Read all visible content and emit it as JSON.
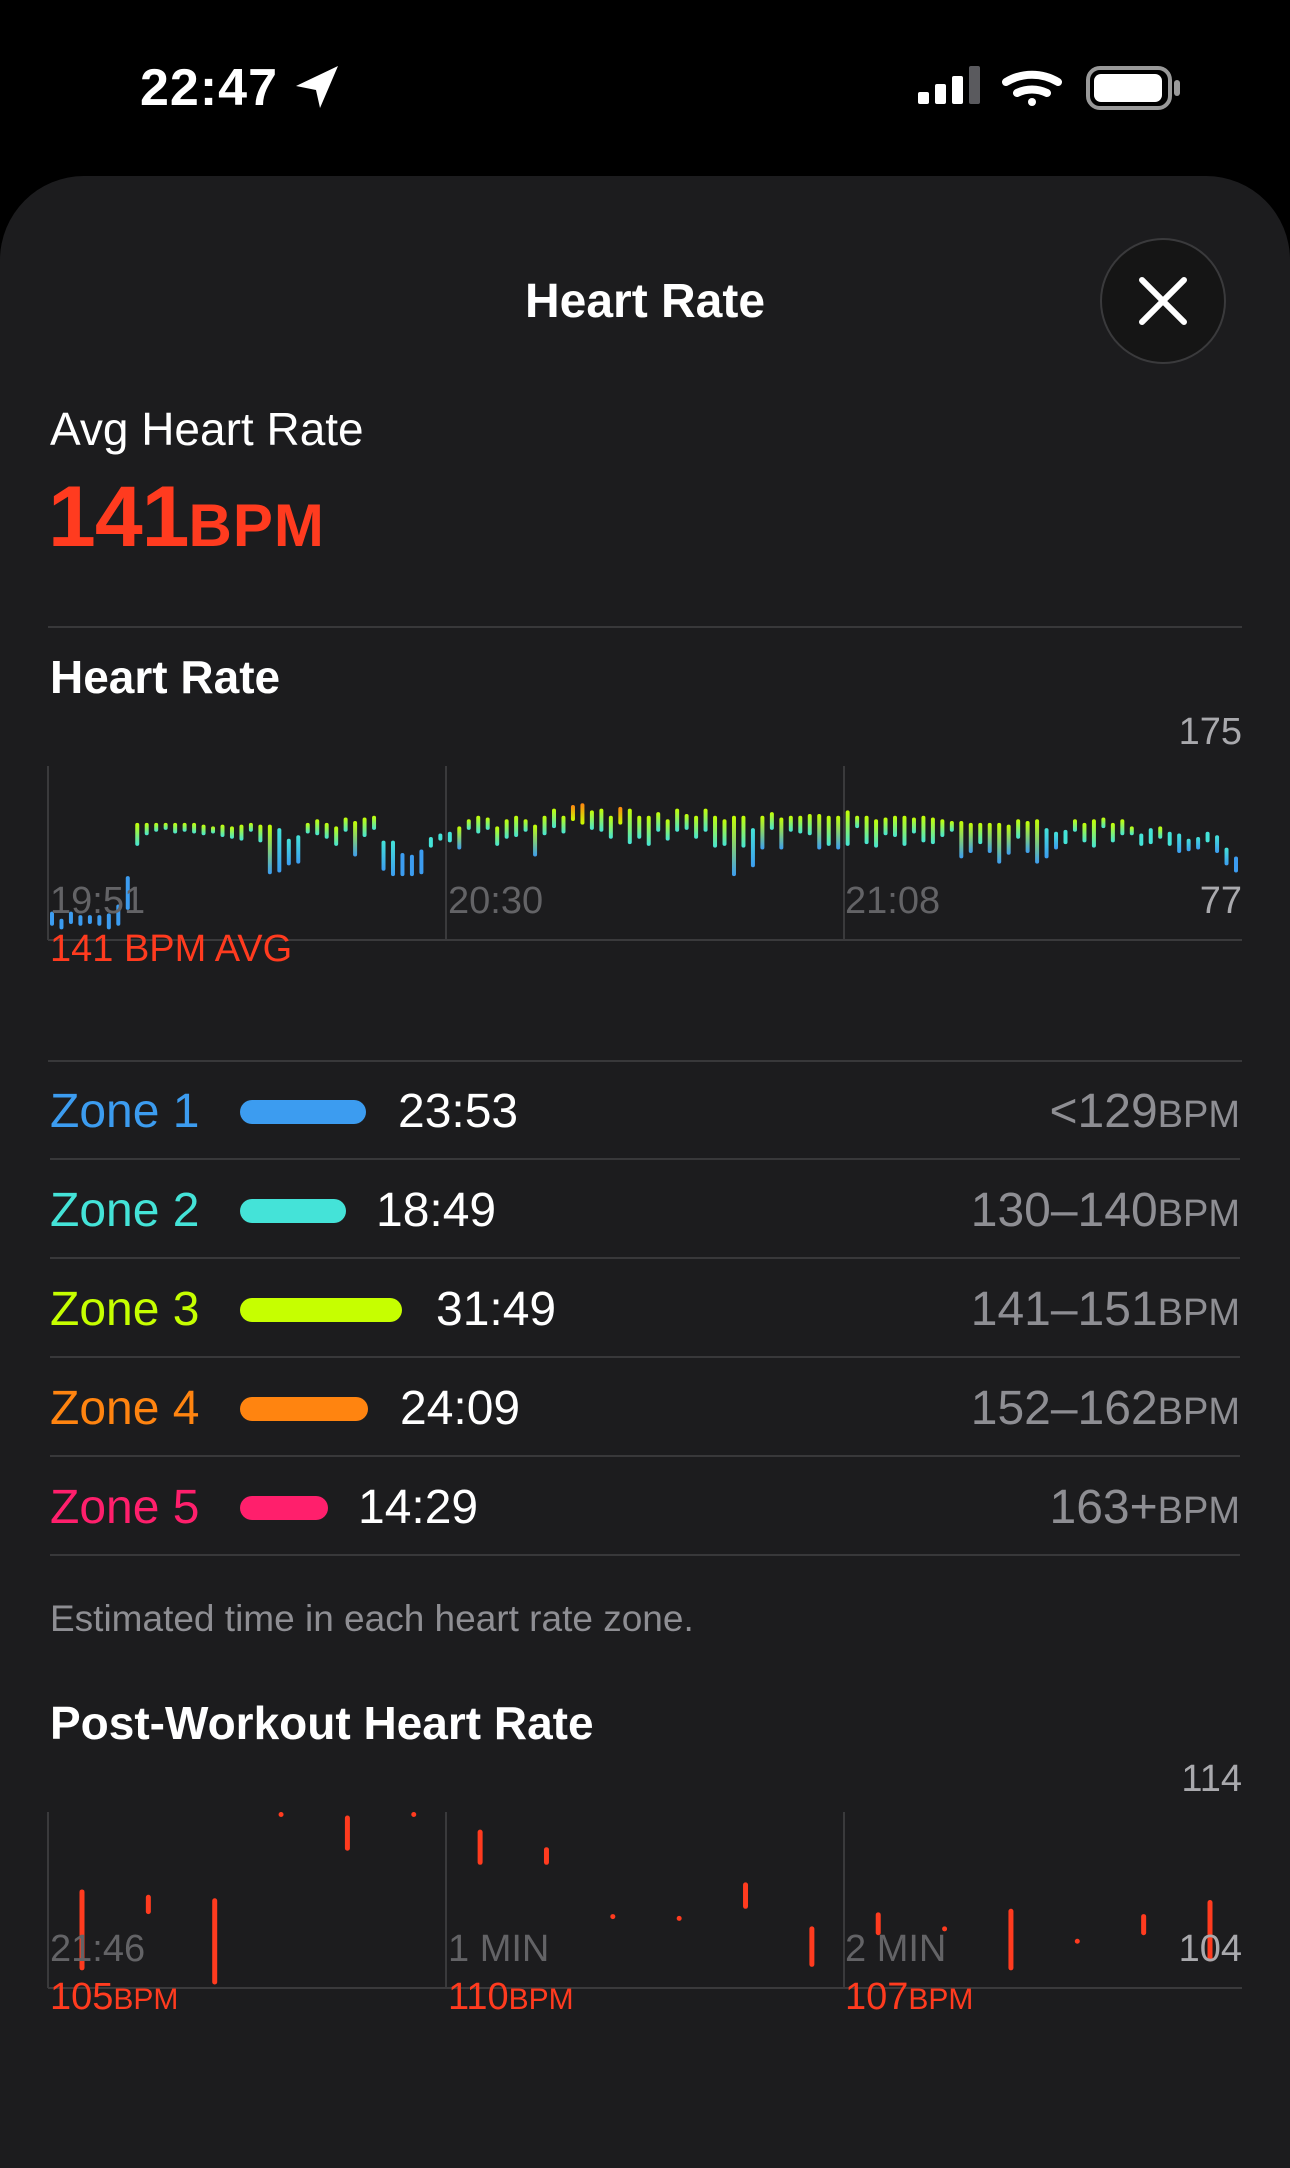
{
  "status_bar": {
    "time": "22:47",
    "icons": [
      "location-arrow-icon",
      "cellular-signal-icon",
      "wifi-icon",
      "battery-icon"
    ]
  },
  "sheet": {
    "title": "Heart Rate",
    "close_icon": "close-icon"
  },
  "summary": {
    "label": "Avg Heart Rate",
    "value": "141",
    "unit": "BPM"
  },
  "heart_rate_section": {
    "title": "Heart Rate",
    "y_max_label": "175",
    "y_min_label": "77",
    "x_labels": [
      "19:51",
      "20:30",
      "21:08"
    ],
    "avg_label": "141 BPM AVG"
  },
  "chart_data": [
    {
      "type": "bar",
      "title": "Heart Rate",
      "xlabel": "",
      "ylabel": "",
      "ylim": [
        77,
        175
      ],
      "x_tick_labels": [
        "19:51",
        "20:30",
        "21:08"
      ],
      "grid": "vertical",
      "note_colors": "bars colored by zone",
      "ranges": [
        [
          85,
          93
        ],
        [
          83,
          89
        ],
        [
          86,
          93
        ],
        [
          85,
          91
        ],
        [
          86,
          91
        ],
        [
          85,
          91
        ],
        [
          83,
          92
        ],
        [
          85,
          97
        ],
        [
          94,
          113
        ],
        [
          130,
          143
        ],
        [
          136,
          143
        ],
        [
          138,
          143
        ],
        [
          139,
          143
        ],
        [
          137,
          143
        ],
        [
          138,
          143
        ],
        [
          137,
          143
        ],
        [
          136,
          142
        ],
        [
          137,
          141
        ],
        [
          135,
          142
        ],
        [
          134,
          141
        ],
        [
          133,
          142
        ],
        [
          138,
          143
        ],
        [
          132,
          142
        ],
        [
          114,
          142
        ],
        [
          115,
          140
        ],
        [
          119,
          134
        ],
        [
          120,
          136
        ],
        [
          137,
          143
        ],
        [
          136,
          145
        ],
        [
          134,
          143
        ],
        [
          130,
          141
        ],
        [
          138,
          146
        ],
        [
          124,
          144
        ],
        [
          135,
          146
        ],
        [
          139,
          147
        ],
        [
          116,
          133
        ],
        [
          113,
          133
        ],
        [
          113,
          126
        ],
        [
          113,
          125
        ],
        [
          114,
          128
        ],
        [
          129,
          135
        ],
        [
          133,
          137
        ],
        [
          132,
          138
        ],
        [
          128,
          141
        ],
        [
          139,
          145
        ],
        [
          137,
          147
        ],
        [
          139,
          146
        ],
        [
          130,
          141
        ],
        [
          134,
          145
        ],
        [
          135,
          147
        ],
        [
          138,
          145
        ],
        [
          124,
          142
        ],
        [
          136,
          147
        ],
        [
          140,
          151
        ],
        [
          137,
          147
        ],
        [
          144,
          153
        ],
        [
          142,
          154
        ],
        [
          139,
          150
        ],
        [
          138,
          151
        ],
        [
          134,
          147
        ],
        [
          142,
          152
        ],
        [
          131,
          151
        ],
        [
          134,
          147
        ],
        [
          130,
          147
        ],
        [
          138,
          149
        ],
        [
          133,
          145
        ],
        [
          138,
          151
        ],
        [
          139,
          148
        ],
        [
          134,
          147
        ],
        [
          138,
          151
        ],
        [
          129,
          147
        ],
        [
          130,
          145
        ],
        [
          113,
          147
        ],
        [
          129,
          147
        ],
        [
          118,
          140
        ],
        [
          128,
          147
        ],
        [
          139,
          149
        ],
        [
          128,
          146
        ],
        [
          138,
          147
        ],
        [
          137,
          147
        ],
        [
          136,
          148
        ],
        [
          128,
          148
        ],
        [
          130,
          147
        ],
        [
          128,
          147
        ],
        [
          130,
          150
        ],
        [
          140,
          147
        ],
        [
          131,
          147
        ],
        [
          129,
          145
        ],
        [
          136,
          146
        ],
        [
          135,
          147
        ],
        [
          130,
          147
        ],
        [
          137,
          146
        ],
        [
          132,
          147
        ],
        [
          131,
          146
        ],
        [
          135,
          145
        ],
        [
          138,
          144
        ],
        [
          123,
          144
        ],
        [
          126,
          143
        ],
        [
          131,
          143
        ],
        [
          126,
          143
        ],
        [
          120,
          143
        ],
        [
          125,
          142
        ],
        [
          134,
          145
        ],
        [
          126,
          144
        ],
        [
          120,
          145
        ],
        [
          123,
          140
        ],
        [
          128,
          138
        ],
        [
          131,
          139
        ],
        [
          138,
          145
        ],
        [
          132,
          143
        ],
        [
          129,
          145
        ],
        [
          140,
          146
        ],
        [
          132,
          143
        ],
        [
          136,
          145
        ],
        [
          136,
          141
        ],
        [
          130,
          137
        ],
        [
          131,
          140
        ],
        [
          134,
          141
        ],
        [
          130,
          138
        ],
        [
          126,
          137
        ],
        [
          127,
          134
        ],
        [
          128,
          135
        ],
        [
          132,
          138
        ],
        [
          126,
          136
        ],
        [
          119,
          129
        ],
        [
          115,
          124
        ]
      ]
    },
    {
      "type": "scatter",
      "title": "Post-Workout Heart Rate",
      "xlabel": "",
      "ylabel": "",
      "ylim": [
        104,
        114
      ],
      "x_tick_labels": [
        "21:46",
        "1 MIN",
        "2 MIN"
      ],
      "grid": "vertical",
      "ranges": [
        [
          105,
          109.6
        ],
        [
          109.3,
          108.2
        ],
        [
          104.2,
          109.1
        ],
        [
          114,
          114
        ],
        [
          111.8,
          113.8
        ],
        [
          114,
          114
        ],
        [
          113,
          111
        ],
        [
          112,
          111
        ],
        [
          108.2,
          108.2
        ],
        [
          108.1,
          108.1
        ],
        [
          108.5,
          110
        ],
        [
          105.2,
          107.5
        ],
        [
          107,
          108.3
        ],
        [
          107.5,
          107.5
        ],
        [
          105,
          108.5
        ],
        [
          106.8,
          106.8
        ],
        [
          108.2,
          107
        ],
        [
          105.5,
          109
        ]
      ],
      "series_readouts": [
        {
          "label": "105",
          "unit": "BPM"
        },
        {
          "label": "110",
          "unit": "BPM"
        },
        {
          "label": "107",
          "unit": "BPM"
        }
      ]
    }
  ],
  "zones": [
    {
      "name": "Zone 1",
      "time": "23:53",
      "range": "<129",
      "unit": "BPM",
      "color": "#3c9cf0",
      "fraction": 0.23
    },
    {
      "name": "Zone 2",
      "time": "18:49",
      "range": "130–140",
      "unit": "BPM",
      "color": "#44e3d8",
      "fraction": 0.18
    },
    {
      "name": "Zone 3",
      "time": "31:49",
      "range": "141–151",
      "unit": "BPM",
      "color": "#c6ff00",
      "fraction": 0.31
    },
    {
      "name": "Zone 4",
      "time": "24:09",
      "range": "152–162",
      "unit": "BPM",
      "color": "#ff8410",
      "fraction": 0.23
    },
    {
      "name": "Zone 5",
      "time": "14:29",
      "range": "163+",
      "unit": "BPM",
      "color": "#ff1f6c",
      "fraction": 0.14
    }
  ],
  "zones_footnote": "Estimated time in each heart rate zone.",
  "post_workout_section": {
    "title": "Post-Workout Heart Rate",
    "y_max_label": "114",
    "y_min_label": "104",
    "x_labels": [
      "21:46",
      "1 MIN",
      "2 MIN"
    ],
    "readouts": [
      {
        "value": "105",
        "unit": "BPM"
      },
      {
        "value": "110",
        "unit": "BPM"
      },
      {
        "value": "107",
        "unit": "BPM"
      }
    ]
  }
}
